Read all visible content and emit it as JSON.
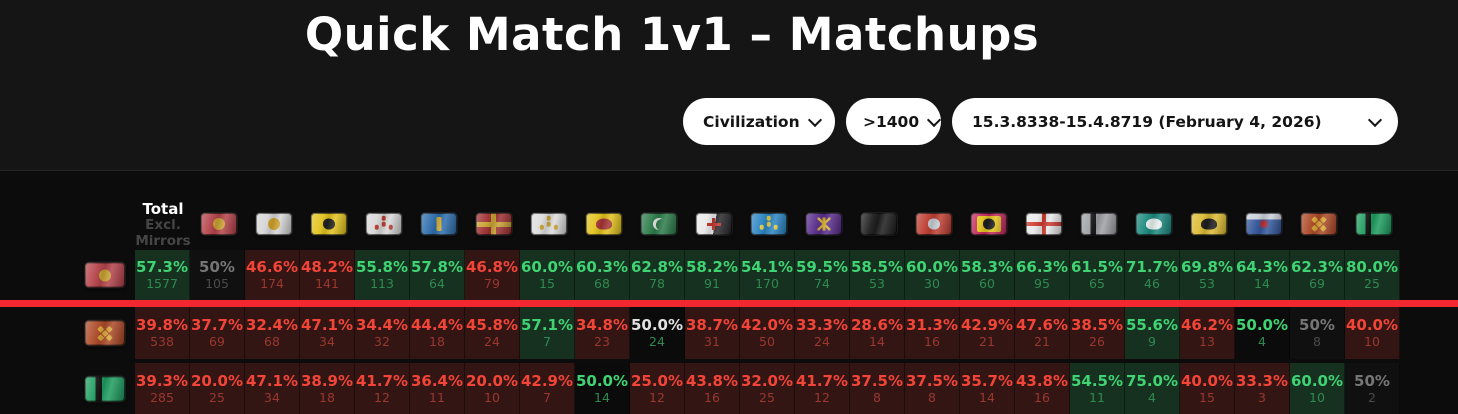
{
  "title": "Quick Match 1v1 – Matchups",
  "filters": {
    "civilization": {
      "label": "Civilization"
    },
    "rating": {
      "label": ">1400"
    },
    "patch": {
      "label": "15.3.8338-15.4.8719 (February 4, 2026)"
    }
  },
  "colors": {
    "win_text": "#3fd373",
    "loss_text": "#f24538",
    "neutral_text": "#757575",
    "win_cell_bg": "#16311f",
    "loss_cell_bg": "#331514",
    "highlight_line": "#f22730",
    "pill_bg": "#ffffff",
    "page_bg": "#151515"
  },
  "table": {
    "corner": [
      "Total",
      "Excl.",
      "Mirrors"
    ],
    "columns": [
      {
        "id": "flag-red-gold-disc",
        "flag": {
          "kind": "solid",
          "base": "#b5444b",
          "shape": "circle",
          "fg": "#c9a232"
        }
      },
      {
        "id": "flag-white-gold-disc",
        "flag": {
          "kind": "solid",
          "base": "#d6d6d6",
          "shape": "circle",
          "fg": "#cfa12b"
        }
      },
      {
        "id": "flag-yellow-black-dragon",
        "flag": {
          "kind": "solid",
          "base": "#e3c31f",
          "shape": "blob",
          "fg": "#20201e"
        }
      },
      {
        "id": "flag-white-red-script",
        "flag": {
          "kind": "solid",
          "base": "#d8d8d8",
          "shape": "dots3",
          "fg": "#bb3c31"
        }
      },
      {
        "id": "flag-blue-gold-column",
        "flag": {
          "kind": "solid",
          "base": "#2f6fae",
          "shape": "bar",
          "fg": "#d9b33a"
        }
      },
      {
        "id": "flag-maroon-gold-cross",
        "flag": {
          "kind": "crossfull",
          "base": "#9e3132",
          "cross": "#c9a232",
          "cw": 5
        }
      },
      {
        "id": "flag-white-gold-fleurs",
        "flag": {
          "kind": "solid",
          "base": "#dcdcdc",
          "shape": "dots3",
          "fg": "#c9a232"
        }
      },
      {
        "id": "flag-yellow-red-eagle",
        "flag": {
          "kind": "solid",
          "base": "#e3c31f",
          "shape": "blobw",
          "fg": "#a83537"
        }
      },
      {
        "id": "flag-green-white-crescent",
        "flag": {
          "kind": "solid",
          "base": "#2e7d4c",
          "shape": "crescent",
          "fg": "#e8e8e8"
        }
      },
      {
        "id": "flag-templar-red-cross",
        "flag": {
          "kind": "half",
          "base": "#e9e9e9",
          "base2": "#2b2b2f",
          "shape": "cross",
          "fg": "#c2342b"
        }
      },
      {
        "id": "flag-blue-yellow-fleurs",
        "flag": {
          "kind": "solid",
          "base": "#2d86c4",
          "shape": "dots3",
          "fg": "#e3d04a"
        }
      },
      {
        "id": "flag-purple-chi-rho",
        "flag": {
          "kind": "solid",
          "base": "#5a2d8c",
          "shape": "xbar",
          "fg": "#d9b33a"
        }
      },
      {
        "id": "flag-plain-black",
        "flag": {
          "kind": "solid",
          "base": "#1e1e1e"
        }
      },
      {
        "id": "flag-red-silver-knight",
        "flag": {
          "kind": "solid",
          "base": "#bf4034",
          "shape": "blob",
          "fg": "#c8ccd4"
        }
      },
      {
        "id": "flag-magenta-yellow-figure",
        "flag": {
          "kind": "solid",
          "base": "#c22a60",
          "inner": "#e3c31f",
          "shape": "blob",
          "fg": "#1c1c1c"
        }
      },
      {
        "id": "flag-white-red-cross",
        "flag": {
          "kind": "crossfull",
          "base": "#e9e9e9",
          "cross": "#cf3b2e",
          "cw": 4
        }
      },
      {
        "id": "flag-silver-black-stripe",
        "flag": {
          "kind": "vstripe",
          "base": "#9fa1a5",
          "stripe": "#1a1a1a"
        }
      },
      {
        "id": "flag-teal-white-bird",
        "flag": {
          "kind": "solid",
          "base": "#1d8a80",
          "shape": "blobw",
          "fg": "#e7f1ee"
        }
      },
      {
        "id": "flag-yellow-black-eagle",
        "flag": {
          "kind": "solid",
          "base": "#ddbc35",
          "shape": "blobw",
          "fg": "#1d1d1d"
        }
      },
      {
        "id": "flag-silver-blue-rose",
        "flag": {
          "kind": "bands",
          "base": "#ccd1d8",
          "base2": "#35589c",
          "shape": "circle-sm",
          "fg": "#b3303c"
        }
      },
      {
        "id": "flag-rust-gold-knot",
        "flag": {
          "kind": "solid",
          "base": "#ad4a28",
          "shape": "dots4",
          "fg": "#d9a93a"
        }
      },
      {
        "id": "flag-green-black-stripe",
        "flag": {
          "kind": "vstripe",
          "base": "#1f9e60",
          "stripe": "#141414"
        }
      }
    ],
    "rows": [
      {
        "flag_index": 0,
        "cells": [
          {
            "pct": "57.3%",
            "count": "1577",
            "tone": "green"
          },
          {
            "pct": "50%",
            "count": "105",
            "tone": "gray"
          },
          {
            "pct": "46.6%",
            "count": "174",
            "tone": "red"
          },
          {
            "pct": "48.2%",
            "count": "141",
            "tone": "red"
          },
          {
            "pct": "55.8%",
            "count": "113",
            "tone": "green"
          },
          {
            "pct": "57.8%",
            "count": "64",
            "tone": "green"
          },
          {
            "pct": "46.8%",
            "count": "79",
            "tone": "red"
          },
          {
            "pct": "60.0%",
            "count": "15",
            "tone": "green"
          },
          {
            "pct": "60.3%",
            "count": "68",
            "tone": "green"
          },
          {
            "pct": "62.8%",
            "count": "78",
            "tone": "green"
          },
          {
            "pct": "58.2%",
            "count": "91",
            "tone": "green"
          },
          {
            "pct": "54.1%",
            "count": "170",
            "tone": "green"
          },
          {
            "pct": "59.5%",
            "count": "74",
            "tone": "green"
          },
          {
            "pct": "58.5%",
            "count": "53",
            "tone": "green"
          },
          {
            "pct": "60.0%",
            "count": "30",
            "tone": "green"
          },
          {
            "pct": "58.3%",
            "count": "60",
            "tone": "green"
          },
          {
            "pct": "66.3%",
            "count": "95",
            "tone": "green"
          },
          {
            "pct": "61.5%",
            "count": "65",
            "tone": "green"
          },
          {
            "pct": "71.7%",
            "count": "46",
            "tone": "green"
          },
          {
            "pct": "69.8%",
            "count": "53",
            "tone": "green"
          },
          {
            "pct": "64.3%",
            "count": "14",
            "tone": "green"
          },
          {
            "pct": "62.3%",
            "count": "69",
            "tone": "green"
          },
          {
            "pct": "80.0%",
            "count": "25",
            "tone": "green"
          }
        ]
      },
      {
        "flag_index": 20,
        "cells": [
          {
            "pct": "39.8%",
            "count": "538",
            "tone": "red"
          },
          {
            "pct": "37.7%",
            "count": "69",
            "tone": "red"
          },
          {
            "pct": "32.4%",
            "count": "68",
            "tone": "red"
          },
          {
            "pct": "47.1%",
            "count": "34",
            "tone": "red"
          },
          {
            "pct": "34.4%",
            "count": "32",
            "tone": "red"
          },
          {
            "pct": "44.4%",
            "count": "18",
            "tone": "red"
          },
          {
            "pct": "45.8%",
            "count": "24",
            "tone": "red"
          },
          {
            "pct": "57.1%",
            "count": "7",
            "tone": "green"
          },
          {
            "pct": "34.8%",
            "count": "23",
            "tone": "red"
          },
          {
            "pct": "50.0%",
            "count": "24",
            "tone": "mixflat"
          },
          {
            "pct": "38.7%",
            "count": "31",
            "tone": "red"
          },
          {
            "pct": "42.0%",
            "count": "50",
            "tone": "red"
          },
          {
            "pct": "33.3%",
            "count": "24",
            "tone": "red"
          },
          {
            "pct": "28.6%",
            "count": "14",
            "tone": "red"
          },
          {
            "pct": "31.3%",
            "count": "16",
            "tone": "red"
          },
          {
            "pct": "42.9%",
            "count": "21",
            "tone": "red"
          },
          {
            "pct": "47.6%",
            "count": "21",
            "tone": "red"
          },
          {
            "pct": "38.5%",
            "count": "26",
            "tone": "red"
          },
          {
            "pct": "55.6%",
            "count": "9",
            "tone": "green"
          },
          {
            "pct": "46.2%",
            "count": "13",
            "tone": "red"
          },
          {
            "pct": "50.0%",
            "count": "4",
            "tone": "greenflat"
          },
          {
            "pct": "50%",
            "count": "8",
            "tone": "gray"
          },
          {
            "pct": "40.0%",
            "count": "10",
            "tone": "red"
          }
        ]
      },
      {
        "flag_index": 21,
        "cells": [
          {
            "pct": "39.3%",
            "count": "285",
            "tone": "red"
          },
          {
            "pct": "20.0%",
            "count": "25",
            "tone": "red"
          },
          {
            "pct": "47.1%",
            "count": "34",
            "tone": "red"
          },
          {
            "pct": "38.9%",
            "count": "18",
            "tone": "red"
          },
          {
            "pct": "41.7%",
            "count": "12",
            "tone": "red"
          },
          {
            "pct": "36.4%",
            "count": "11",
            "tone": "red"
          },
          {
            "pct": "20.0%",
            "count": "10",
            "tone": "red"
          },
          {
            "pct": "42.9%",
            "count": "7",
            "tone": "red"
          },
          {
            "pct": "50.0%",
            "count": "14",
            "tone": "greenflat"
          },
          {
            "pct": "25.0%",
            "count": "12",
            "tone": "red"
          },
          {
            "pct": "43.8%",
            "count": "16",
            "tone": "red"
          },
          {
            "pct": "32.0%",
            "count": "25",
            "tone": "red"
          },
          {
            "pct": "41.7%",
            "count": "12",
            "tone": "red"
          },
          {
            "pct": "37.5%",
            "count": "8",
            "tone": "red"
          },
          {
            "pct": "37.5%",
            "count": "8",
            "tone": "red"
          },
          {
            "pct": "35.7%",
            "count": "14",
            "tone": "red"
          },
          {
            "pct": "43.8%",
            "count": "16",
            "tone": "red"
          },
          {
            "pct": "54.5%",
            "count": "11",
            "tone": "green"
          },
          {
            "pct": "75.0%",
            "count": "4",
            "tone": "green"
          },
          {
            "pct": "40.0%",
            "count": "15",
            "tone": "red"
          },
          {
            "pct": "33.3%",
            "count": "3",
            "tone": "red"
          },
          {
            "pct": "60.0%",
            "count": "10",
            "tone": "green"
          },
          {
            "pct": "50%",
            "count": "2",
            "tone": "gray"
          }
        ]
      }
    ]
  }
}
